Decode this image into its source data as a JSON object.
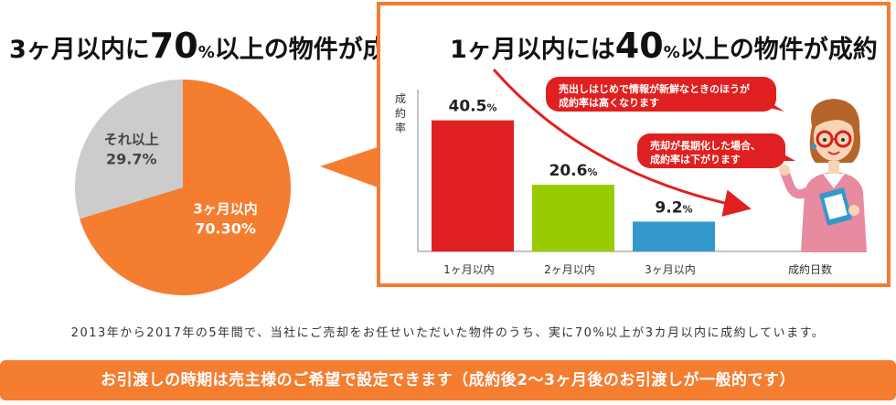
{
  "left_title": {
    "prefix": "3ヶ月以内に",
    "big": "70",
    "pct": "%",
    "suffix": "以上の物件が成約"
  },
  "right_title": {
    "prefix": "1ヶ月以内には",
    "big": "40",
    "pct": "%",
    "suffix": "以上の物件が成約"
  },
  "callouts": [
    {
      "line1": "売出しはじめで情報が新鮮なときのほうが",
      "line2": "成約率は高くなります"
    },
    {
      "line1": "売却が長期化した場合、",
      "line2": "成約率は下がります"
    }
  ],
  "note": "2013年から2017年の5年間で、当社にご売却をお任せいただいた物件のうち、実に70%以上が3カ月以内に成約しています。",
  "banner": "お引渡しの時期は売主様のご希望で設定できます（成約後2〜3ヶ月後のお引渡しが一般的です）",
  "colors": {
    "accent": "#f47d30",
    "gray": "#cccccc",
    "red": "#e02020",
    "green": "#99cc00",
    "blue": "#3399cc"
  },
  "chart_data": [
    {
      "type": "pie",
      "slices": [
        {
          "label": "3ヶ月以内",
          "value": 70.3,
          "display": "70.30%",
          "color": "#f47d30"
        },
        {
          "label": "それ以上",
          "value": 29.7,
          "display": "29.7%",
          "color": "#cccccc"
        }
      ]
    },
    {
      "type": "bar",
      "categories": [
        "1ヶ月以内",
        "2ヶ月以内",
        "3ヶ月以内"
      ],
      "values": [
        40.5,
        20.6,
        9.2
      ],
      "value_labels": [
        "40.5",
        "20.6",
        "9.2"
      ],
      "unit": "%",
      "colors": [
        "#e02020",
        "#99cc00",
        "#3399cc"
      ],
      "ylabel": "成約率",
      "xlabel": "成約日数",
      "ylim": [
        0,
        50
      ]
    }
  ]
}
